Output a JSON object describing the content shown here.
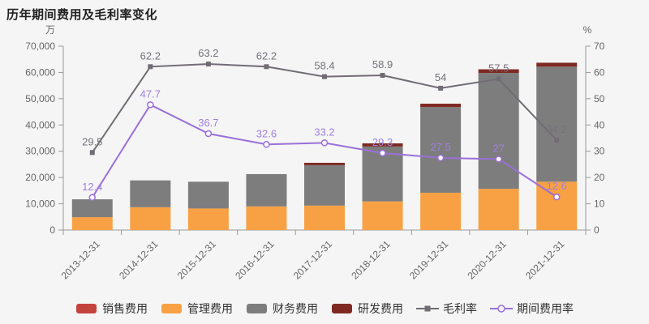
{
  "title": "历年期间费用及毛利率变化",
  "left_axis": {
    "unit": "万",
    "min": 0,
    "max": 70000,
    "step": 10000,
    "ticks": [
      "0",
      "10,000",
      "20,000",
      "30,000",
      "40,000",
      "50,000",
      "60,000",
      "70,000"
    ]
  },
  "right_axis": {
    "unit": "%",
    "min": 0,
    "max": 70,
    "step": 10,
    "ticks": [
      "0",
      "10",
      "20",
      "30",
      "40",
      "50",
      "60",
      "70"
    ]
  },
  "colors": {
    "background": "#f5f5f5",
    "axis_line": "#999999",
    "axis_label": "#666666",
    "title_text": "#222222",
    "legend_text": "#333333"
  },
  "chart_data": {
    "type": "bar",
    "subtype": "stacked-bar-with-dual-axis-lines",
    "title": "历年期间费用及毛利率变化",
    "xlabel": "",
    "ylabel_left": "万",
    "ylabel_right": "%",
    "ylim_left": [
      0,
      70000
    ],
    "ylim_right": [
      0,
      70
    ],
    "grid": false,
    "legend_position": "bottom",
    "categories": [
      "2013-12-31",
      "2014-12-31",
      "2015-12-31",
      "2016-12-31",
      "2017-12-31",
      "2018-12-31",
      "2019-12-31",
      "2020-12-31",
      "2021-12-31"
    ],
    "series": [
      {
        "name": "销售费用",
        "slug": "sales-expense",
        "type": "bar",
        "stack": true,
        "axis": "left",
        "color": "#c5433d",
        "values": [
          0,
          0,
          0,
          0,
          0,
          0,
          0,
          0,
          0
        ]
      },
      {
        "name": "管理费用",
        "slug": "admin-expense",
        "type": "bar",
        "stack": true,
        "axis": "left",
        "color": "#f7a144",
        "values": [
          4900,
          8700,
          8200,
          9000,
          9300,
          10900,
          14200,
          15700,
          18400
        ]
      },
      {
        "name": "财务费用",
        "slug": "finance-expense",
        "type": "bar",
        "stack": true,
        "axis": "left",
        "color": "#7d7d7d",
        "values": [
          6800,
          10200,
          10200,
          12300,
          15400,
          20900,
          32600,
          44100,
          43800
        ]
      },
      {
        "name": "研发费用",
        "slug": "rd-expense",
        "type": "bar",
        "stack": true,
        "axis": "left",
        "color": "#7e2a23",
        "values": [
          0,
          0,
          0,
          0,
          900,
          1200,
          1300,
          1400,
          1500
        ]
      },
      {
        "name": "毛利率",
        "slug": "gross-margin",
        "type": "line",
        "marker": "square",
        "axis": "right",
        "color": "#716c74",
        "label_color": "#76717a",
        "values": [
          29.5,
          62.2,
          63.2,
          62.2,
          58.4,
          58.9,
          54,
          57.5,
          34.2
        ],
        "labels": [
          "29.5",
          "62.2",
          "63.2",
          "62.2",
          "58.4",
          "58.9",
          "54",
          "57.5",
          "34.2"
        ]
      },
      {
        "name": "期间费用率",
        "slug": "period-expense-ratio",
        "type": "line",
        "marker": "circle-open",
        "axis": "right",
        "color": "#9a70d8",
        "label_color": "#a080de",
        "values": [
          12.4,
          47.7,
          36.7,
          32.6,
          33.2,
          29.3,
          27.5,
          27,
          12.6
        ],
        "labels": [
          "12.4",
          "47.7",
          "36.7",
          "32.6",
          "33.2",
          "29.3",
          "27.5",
          "27",
          "12.6"
        ]
      }
    ]
  }
}
